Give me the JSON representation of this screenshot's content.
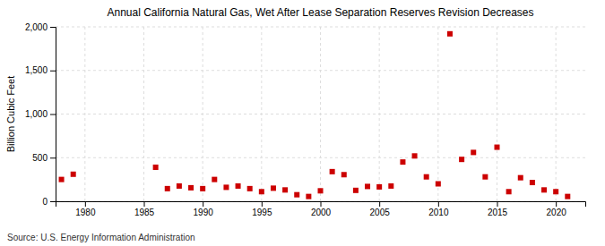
{
  "chart_data": {
    "type": "scatter",
    "title": "Annual California Natural Gas, Wet After Lease Separation Reserves Revision Decreases",
    "ylabel": "Billion Cubic Feet",
    "annotations": [
      "Source: U.S. Energy Information Administration"
    ],
    "color": "#cc0000",
    "marker": "square",
    "grid": true,
    "xlim": [
      1977.5,
      2022.5
    ],
    "ylim": [
      0,
      2000
    ],
    "xticks": [
      1980,
      1985,
      1990,
      1995,
      2000,
      2005,
      2010,
      2015,
      2020
    ],
    "yticks": [
      0,
      500,
      {
        "value": 1000,
        "label": "1,000"
      },
      {
        "value": 1500,
        "label": "1,500"
      },
      {
        "value": 2000,
        "label": "2,000"
      }
    ],
    "x": [
      1978,
      1979,
      1986,
      1987,
      1988,
      1989,
      1990,
      1991,
      1992,
      1993,
      1994,
      1995,
      1996,
      1997,
      1998,
      1999,
      2000,
      2001,
      2002,
      2003,
      2004,
      2005,
      2006,
      2007,
      2008,
      2009,
      2010,
      2011,
      2012,
      2013,
      2014,
      2015,
      2016,
      2017,
      2018,
      2019,
      2020,
      2021
    ],
    "values": [
      250,
      310,
      390,
      145,
      175,
      155,
      145,
      250,
      160,
      175,
      145,
      110,
      150,
      130,
      75,
      55,
      120,
      340,
      305,
      125,
      170,
      165,
      175,
      450,
      520,
      280,
      200,
      1920,
      480,
      560,
      280,
      620,
      110,
      270,
      215,
      130,
      110,
      55
    ]
  }
}
